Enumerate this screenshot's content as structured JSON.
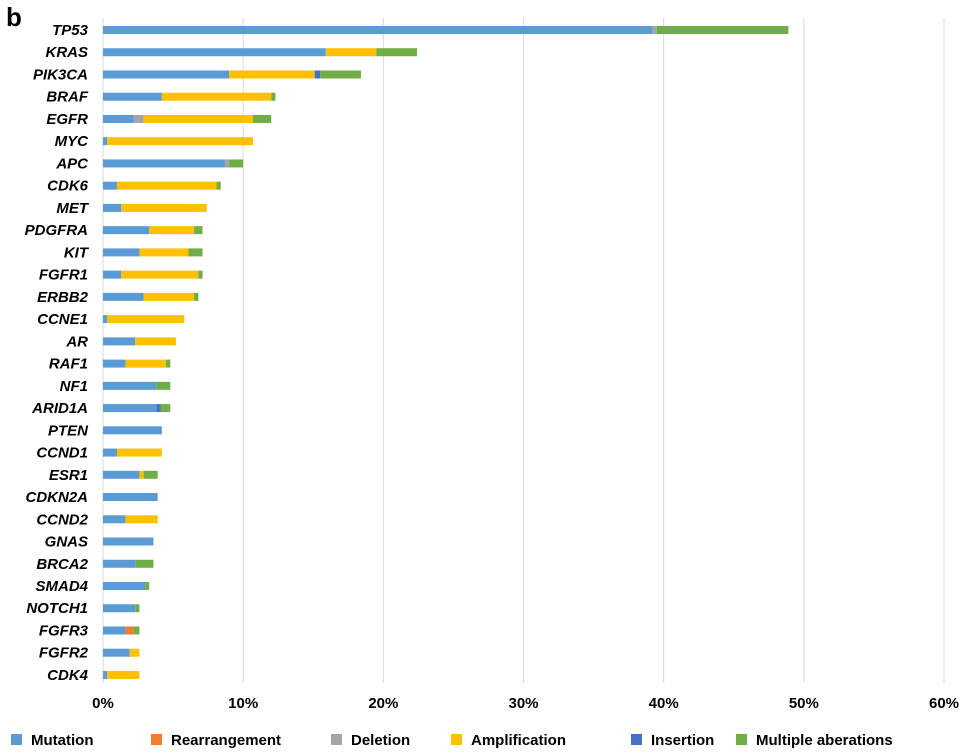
{
  "panel_label": "b",
  "colors": {
    "Mutation": "#5b9bd5",
    "Rearrangement": "#ed7d31",
    "Deletion": "#a5a5a5",
    "Amplification": "#ffc000",
    "Insertion": "#4472c4",
    "Multiple aberations": "#70ad47"
  },
  "chart_data": {
    "type": "bar",
    "orientation": "horizontal",
    "stacked": true,
    "x_unit": "percent",
    "xlim": [
      0,
      60
    ],
    "xticks": [
      "0%",
      "10%",
      "20%",
      "30%",
      "40%",
      "50%",
      "60%"
    ],
    "grid": true,
    "legend_position": "bottom",
    "categories": [
      "TP53",
      "KRAS",
      "PIK3CA",
      "BRAF",
      "EGFR",
      "MYC",
      "APC",
      "CDK6",
      "MET",
      "PDGFRA",
      "KIT",
      "FGFR1",
      "ERBB2",
      "CCNE1",
      "AR",
      "RAF1",
      "NF1",
      "ARID1A",
      "PTEN",
      "CCND1",
      "ESR1",
      "CDKN2A",
      "CCND2",
      "GNAS",
      "BRCA2",
      "SMAD4",
      "NOTCH1",
      "FGFR3",
      "FGFR2",
      "CDK4"
    ],
    "series": [
      {
        "name": "Mutation",
        "values": [
          39.2,
          15.9,
          9.0,
          4.2,
          2.2,
          0.3,
          8.7,
          1.0,
          1.3,
          3.3,
          2.6,
          1.3,
          2.9,
          0.3,
          2.3,
          1.6,
          3.8,
          3.8,
          4.2,
          1.0,
          2.6,
          3.9,
          1.6,
          3.6,
          2.3,
          3.0,
          2.3,
          1.6,
          1.9,
          0.3
        ]
      },
      {
        "name": "Rearrangement",
        "values": [
          0,
          0,
          0,
          0,
          0,
          0,
          0,
          0,
          0,
          0,
          0,
          0,
          0,
          0,
          0,
          0,
          0,
          0,
          0,
          0,
          0,
          0,
          0,
          0,
          0,
          0,
          0,
          0.6,
          0,
          0
        ]
      },
      {
        "name": "Deletion",
        "values": [
          0.3,
          0,
          0,
          0,
          0.7,
          0,
          0.3,
          0,
          0,
          0,
          0,
          0,
          0,
          0,
          0,
          0,
          0,
          0,
          0,
          0,
          0,
          0,
          0,
          0,
          0,
          0,
          0,
          0,
          0,
          0
        ]
      },
      {
        "name": "Amplification",
        "values": [
          0,
          3.6,
          6.1,
          7.8,
          7.8,
          10.4,
          0,
          7.1,
          6.1,
          3.2,
          3.5,
          5.5,
          3.6,
          5.5,
          2.9,
          2.9,
          0,
          0,
          0,
          3.2,
          0.3,
          0,
          2.3,
          0,
          0,
          0,
          0,
          0,
          0.7,
          2.3
        ]
      },
      {
        "name": "Insertion",
        "values": [
          0,
          0,
          0.4,
          0,
          0,
          0,
          0,
          0,
          0,
          0,
          0,
          0,
          0,
          0,
          0,
          0,
          0,
          0.3,
          0,
          0,
          0,
          0,
          0,
          0,
          0,
          0,
          0,
          0,
          0,
          0
        ]
      },
      {
        "name": "Multiple aberations",
        "values": [
          9.4,
          2.9,
          2.9,
          0.3,
          1.3,
          0,
          1.0,
          0.3,
          0,
          0.6,
          1.0,
          0.3,
          0.3,
          0,
          0,
          0.3,
          1.0,
          0.7,
          0,
          0,
          1.0,
          0,
          0,
          0,
          1.3,
          0.3,
          0.3,
          0.4,
          0,
          0
        ]
      }
    ]
  }
}
